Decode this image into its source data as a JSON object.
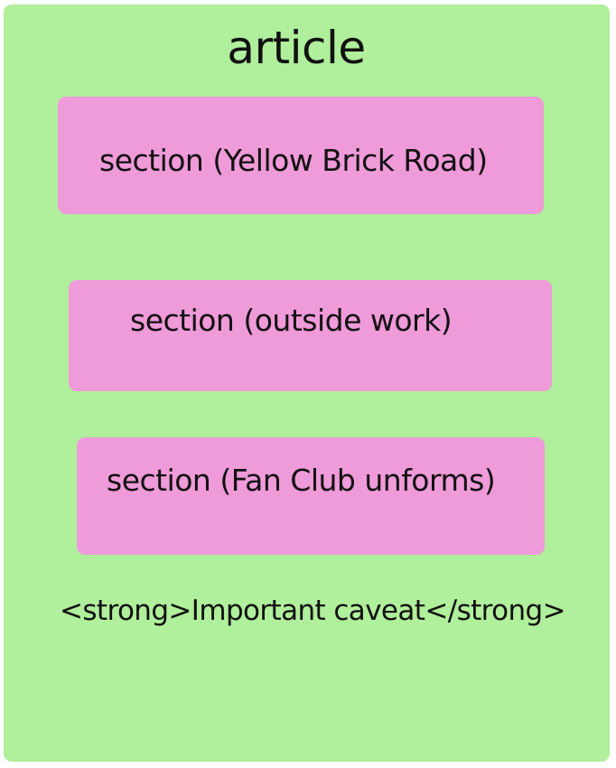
{
  "diagram": {
    "article": {
      "label": "article",
      "color": "#b0ef9b"
    },
    "section_color": "#ef9ad9",
    "sections": [
      {
        "label": "section (Yellow Brick Road)"
      },
      {
        "label": "section (outside work)"
      },
      {
        "label": "section (Fan Club unforms)"
      }
    ],
    "caveat": "<strong>Important caveat</strong>"
  }
}
